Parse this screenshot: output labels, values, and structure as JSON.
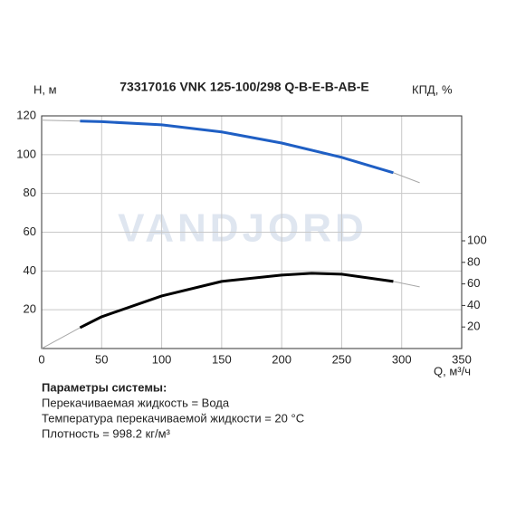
{
  "chart_data": {
    "type": "line",
    "title": "73317016 VNK 125-100/298 Q-B-E-B-AB-E",
    "ylabel": "H, м",
    "y2label": "КПД, %",
    "xlabel": "Q, м³/ч",
    "watermark": "VANDJORD",
    "xlim": [
      0,
      350
    ],
    "xticks": [
      0,
      50,
      100,
      150,
      200,
      250,
      300,
      350
    ],
    "ylim": [
      0,
      120
    ],
    "yticks": [
      20,
      40,
      60,
      80,
      100,
      120
    ],
    "y2lim": [
      0,
      216
    ],
    "y2ticks": [
      20,
      40,
      60,
      80,
      100
    ],
    "grid": true,
    "series": [
      {
        "color": "#a8a8a8",
        "width": 1,
        "axis": "y",
        "x": [
          0,
          32,
          50,
          100,
          150,
          200,
          250,
          293,
          315
        ],
        "values": [
          117.8,
          117.3,
          117,
          115.4,
          111.7,
          106,
          98.6,
          90.7,
          85.5
        ]
      },
      {
        "color": "#1f5fc4",
        "width": 3,
        "axis": "y",
        "x": [
          32,
          50,
          100,
          150,
          200,
          250,
          293
        ],
        "values": [
          117.3,
          117,
          115.4,
          111.7,
          106,
          98.6,
          90.7
        ]
      },
      {
        "color": "#a8a8a8",
        "width": 1,
        "axis": "y2",
        "x": [
          0,
          32,
          50,
          100,
          150,
          200,
          225,
          250,
          293,
          315
        ],
        "values": [
          0,
          19.4,
          29.5,
          48.8,
          62.3,
          68.2,
          69.9,
          69,
          62.3,
          57.3
        ]
      },
      {
        "color": "#000000",
        "width": 3,
        "axis": "y2",
        "x": [
          32,
          50,
          100,
          150,
          200,
          225,
          250,
          293
        ],
        "values": [
          19.4,
          29.5,
          48.8,
          62.3,
          68.2,
          69.9,
          69,
          62.3
        ]
      }
    ]
  },
  "notes": {
    "heading": "Параметры системы:",
    "lines": [
      "Перекачиваемая жидкость = Вода",
      "Температура перекачиваемой жидкости = 20 °C",
      "Плотность = 998.2 кг/м³"
    ]
  }
}
